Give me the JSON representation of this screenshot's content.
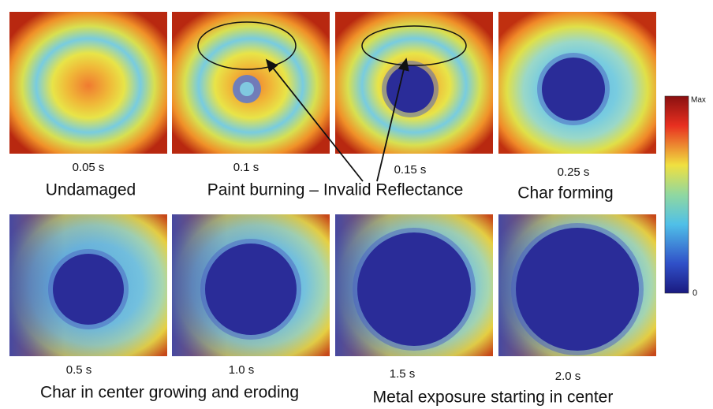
{
  "panels": [
    {
      "time": "0.05 s"
    },
    {
      "time": "0.1 s"
    },
    {
      "time": "0.15 s"
    },
    {
      "time": "0.25 s"
    },
    {
      "time": "0.5 s"
    },
    {
      "time": "1.0 s"
    },
    {
      "time": "1.5 s"
    },
    {
      "time": "2.0 s"
    }
  ],
  "captions": [
    "Undamaged",
    "Paint burning – Invalid Reflectance",
    "Char forming",
    "Char in center growing and eroding",
    "Metal exposure starting in center"
  ],
  "colorbar": {
    "max": "Max",
    "min": "0"
  }
}
